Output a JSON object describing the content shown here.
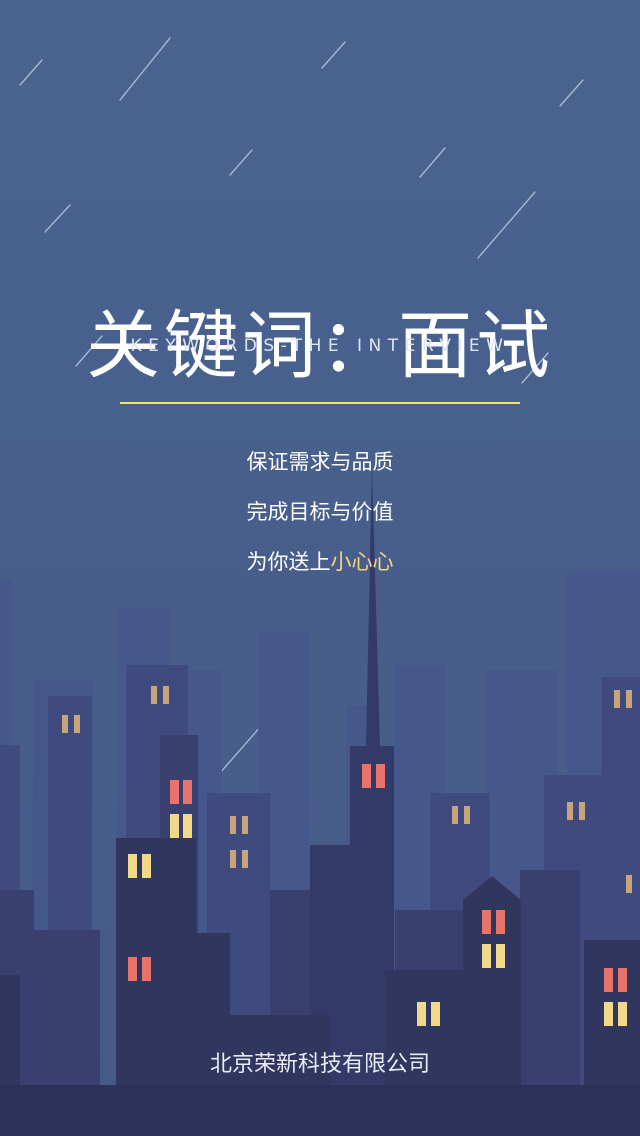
{
  "hero": {
    "title": "关键词：面试",
    "subtitle": "KEYWORDS-THE INTERVIEW"
  },
  "taglines": {
    "line1": "保证需求与品质",
    "line2": "完成目标与价值",
    "line3_prefix": "为你送上",
    "line3_highlight": "小心心"
  },
  "footer": {
    "company": "北京荣新科技有限公司"
  },
  "colors": {
    "sky": "#4a638f",
    "accent_line": "#f2e56a",
    "highlight_text": "#f7d67a",
    "window_warm": "#f2d98a",
    "window_red": "#e8736a",
    "window_dim": "#c8a47a"
  }
}
